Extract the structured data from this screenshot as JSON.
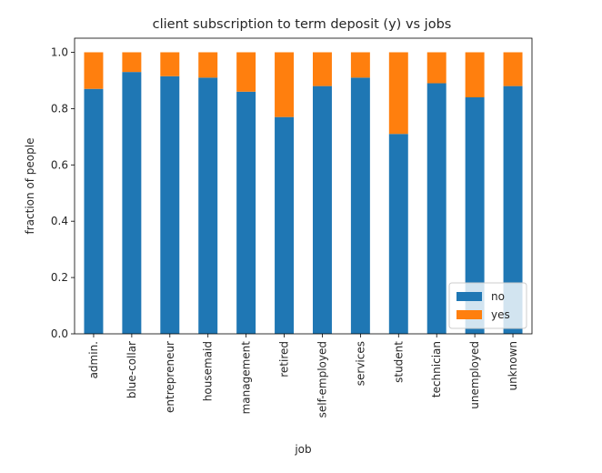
{
  "chart_data": {
    "type": "bar",
    "stacked": true,
    "title": "client subscription to term deposit (y) vs jobs",
    "xlabel": "job",
    "ylabel": "fraction of people",
    "ylim": [
      0,
      1.05
    ],
    "yticks": [
      "0.0",
      "0.2",
      "0.4",
      "0.6",
      "0.8",
      "1.0"
    ],
    "categories": [
      "admin.",
      "blue-collar",
      "entrepreneur",
      "housemaid",
      "management",
      "retired",
      "self-employed",
      "services",
      "student",
      "technician",
      "unemployed",
      "unknown"
    ],
    "series": [
      {
        "name": "no",
        "color": "#1f77b4",
        "values": [
          0.87,
          0.93,
          0.915,
          0.91,
          0.86,
          0.77,
          0.88,
          0.91,
          0.71,
          0.89,
          0.84,
          0.88
        ]
      },
      {
        "name": "yes",
        "color": "#ff7f0e",
        "values": [
          0.13,
          0.07,
          0.085,
          0.09,
          0.14,
          0.23,
          0.12,
          0.09,
          0.29,
          0.11,
          0.16,
          0.12
        ]
      }
    ],
    "legend_position": "lower-right",
    "grid": false
  }
}
